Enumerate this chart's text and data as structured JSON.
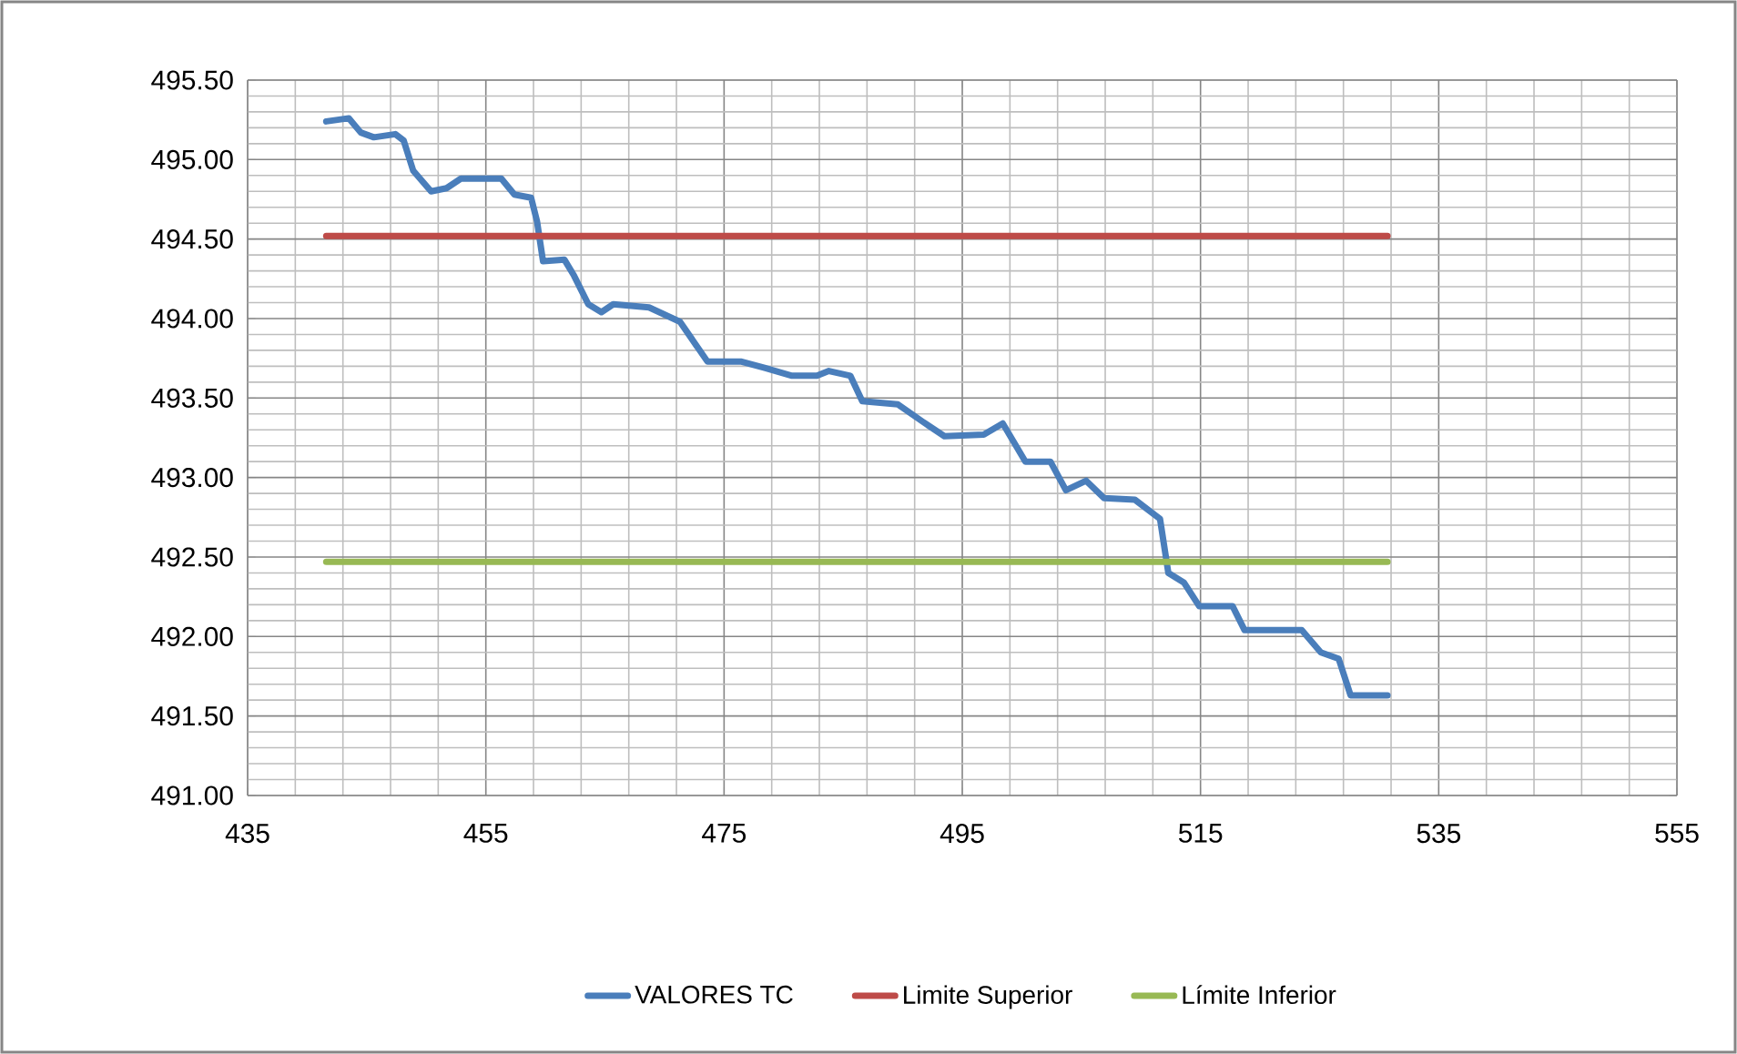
{
  "chart_data": {
    "type": "line",
    "xlim": [
      435,
      555
    ],
    "xticks": [
      435,
      455,
      475,
      495,
      515,
      535,
      555
    ],
    "ylim": [
      491,
      495.5
    ],
    "yticks": [
      {
        "value": 491,
        "label": "491.00"
      },
      {
        "value": 491.5,
        "label": "491.50"
      },
      {
        "value": 492,
        "label": "492.00"
      },
      {
        "value": 492.5,
        "label": "492.50"
      },
      {
        "value": 493,
        "label": "493.00"
      },
      {
        "value": 493.5,
        "label": "493.50"
      },
      {
        "value": 494,
        "label": "494.00"
      },
      {
        "value": 494.5,
        "label": "494.50"
      },
      {
        "value": 495,
        "label": "495.00"
      },
      {
        "value": 495.5,
        "label": "495.50"
      }
    ],
    "grid": true,
    "legend": "bottom",
    "series": [
      {
        "name": "VALORES TC",
        "color": "#4a7ebb",
        "x": [
          441.6,
          443.5,
          444.5,
          445.6,
          447.4,
          448.1,
          448.9,
          450.4,
          451.7,
          452.9,
          456.3,
          457.4,
          458.8,
          459.3,
          459.8,
          461.6,
          462.4,
          463.6,
          464.7,
          465.7,
          468.7,
          471.3,
          473.6,
          476.4,
          478.4,
          480.7,
          482.8,
          483.8,
          485.6,
          486.6,
          489.6,
          491.7,
          493.5,
          496.8,
          498.4,
          500.3,
          502.4,
          503.7,
          505.4,
          506.9,
          509.5,
          511.6,
          512.3,
          513.6,
          514.9,
          517.7,
          518.7,
          523.5,
          525.1,
          526.6,
          527.6,
          530.7
        ],
        "values": [
          495.24,
          495.26,
          495.17,
          495.14,
          495.16,
          495.12,
          494.93,
          494.8,
          494.82,
          494.88,
          494.88,
          494.78,
          494.76,
          494.61,
          494.36,
          494.37,
          494.27,
          494.09,
          494.04,
          494.09,
          494.07,
          493.98,
          493.73,
          493.73,
          493.69,
          493.64,
          493.64,
          493.67,
          493.64,
          493.48,
          493.46,
          493.35,
          493.26,
          493.27,
          493.34,
          493.1,
          493.1,
          492.92,
          492.98,
          492.87,
          492.86,
          492.74,
          492.4,
          492.34,
          492.19,
          492.19,
          492.04,
          492.04,
          491.9,
          491.86,
          491.63,
          491.63
        ]
      },
      {
        "name": "Limite Superior",
        "color": "#be4b48",
        "x": [
          441.6,
          530.7
        ],
        "values": [
          494.52,
          494.52
        ]
      },
      {
        "name": "Límite Inferior",
        "color": "#98b954",
        "x": [
          441.6,
          530.7
        ],
        "values": [
          492.47,
          492.47
        ]
      }
    ]
  }
}
